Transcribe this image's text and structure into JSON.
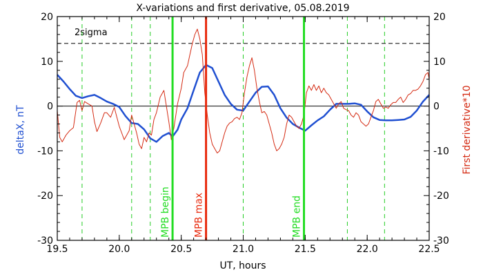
{
  "chart_data": {
    "type": "line",
    "title": "X-variations and first derivative, 05.08.2019",
    "xlabel": "UT, hours",
    "ylabel_left": "deltaX, nT",
    "ylabel_right": "First derivative*10",
    "xlim": [
      19.5,
      22.5
    ],
    "ylim": [
      -30,
      20
    ],
    "x_ticks": [
      "19.5",
      "20.0",
      "20.5",
      "21.0",
      "21.5",
      "22.0",
      "22.5"
    ],
    "x_tick_values": [
      19.5,
      20.0,
      20.5,
      21.0,
      21.5,
      22.0,
      22.5
    ],
    "y_ticks": [
      "20",
      "10",
      "0",
      "-10",
      "-20",
      "-30"
    ],
    "y_tick_values": [
      20,
      10,
      0,
      -10,
      -20,
      -30
    ],
    "grid": false,
    "threshold": {
      "label": "2sigma",
      "value": 14,
      "style": "dashed",
      "color": "#000000"
    },
    "zero_line": 0,
    "dashed_markers": {
      "color": "#22cc22",
      "x": [
        19.7,
        20.1,
        20.25,
        21.0,
        21.84,
        22.14
      ]
    },
    "event_markers": [
      {
        "label": "MPB begin",
        "x": 20.43,
        "color": "#22dd22"
      },
      {
        "label": "MPB max",
        "x": 20.7,
        "color": "#e8290c"
      },
      {
        "label": "MPB end",
        "x": 21.49,
        "color": "#22dd22"
      }
    ],
    "series": [
      {
        "name": "deltaX, nT",
        "color": "#1f4fd1",
        "points": [
          [
            19.5,
            7.0
          ],
          [
            19.55,
            5.5
          ],
          [
            19.6,
            3.8
          ],
          [
            19.65,
            2.3
          ],
          [
            19.7,
            1.8
          ],
          [
            19.75,
            2.2
          ],
          [
            19.8,
            2.5
          ],
          [
            19.85,
            1.8
          ],
          [
            19.9,
            1.0
          ],
          [
            19.95,
            0.5
          ],
          [
            20.0,
            -0.2
          ],
          [
            20.05,
            -2.2
          ],
          [
            20.1,
            -3.8
          ],
          [
            20.15,
            -4.0
          ],
          [
            20.2,
            -5.2
          ],
          [
            20.25,
            -7.2
          ],
          [
            20.3,
            -8.0
          ],
          [
            20.35,
            -6.7
          ],
          [
            20.4,
            -6.0
          ],
          [
            20.43,
            -6.8
          ],
          [
            20.47,
            -5.3
          ],
          [
            20.5,
            -3.0
          ],
          [
            20.55,
            -0.5
          ],
          [
            20.6,
            3.5
          ],
          [
            20.65,
            7.5
          ],
          [
            20.7,
            9.2
          ],
          [
            20.75,
            8.5
          ],
          [
            20.8,
            5.5
          ],
          [
            20.85,
            2.5
          ],
          [
            20.9,
            0.5
          ],
          [
            20.95,
            -0.8
          ],
          [
            21.0,
            -1.0
          ],
          [
            21.05,
            1.0
          ],
          [
            21.1,
            3.0
          ],
          [
            21.15,
            4.3
          ],
          [
            21.2,
            4.4
          ],
          [
            21.25,
            2.5
          ],
          [
            21.3,
            -0.5
          ],
          [
            21.35,
            -2.6
          ],
          [
            21.4,
            -4.0
          ],
          [
            21.45,
            -4.8
          ],
          [
            21.5,
            -5.5
          ],
          [
            21.55,
            -4.3
          ],
          [
            21.6,
            -3.2
          ],
          [
            21.65,
            -2.3
          ],
          [
            21.7,
            -0.8
          ],
          [
            21.75,
            0.5
          ],
          [
            21.8,
            0.5
          ],
          [
            21.85,
            0.5
          ],
          [
            21.9,
            0.6
          ],
          [
            21.95,
            0.3
          ],
          [
            22.0,
            -1.2
          ],
          [
            22.05,
            -2.5
          ],
          [
            22.1,
            -3.1
          ],
          [
            22.15,
            -3.2
          ],
          [
            22.2,
            -3.2
          ],
          [
            22.25,
            -3.1
          ],
          [
            22.3,
            -3.0
          ],
          [
            22.35,
            -2.4
          ],
          [
            22.4,
            -1.0
          ],
          [
            22.45,
            1.0
          ],
          [
            22.5,
            2.5
          ]
        ]
      },
      {
        "name": "First derivative*10",
        "color": "#d42a12",
        "points": [
          [
            19.5,
            -1.0
          ],
          [
            19.52,
            -7.0
          ],
          [
            19.54,
            -8.0
          ],
          [
            19.57,
            -6.5
          ],
          [
            19.6,
            -5.5
          ],
          [
            19.63,
            -4.8
          ],
          [
            19.66,
            0.8
          ],
          [
            19.68,
            1.3
          ],
          [
            19.7,
            -1.0
          ],
          [
            19.72,
            1.0
          ],
          [
            19.75,
            0.5
          ],
          [
            19.78,
            0.0
          ],
          [
            19.8,
            -3.5
          ],
          [
            19.82,
            -5.7
          ],
          [
            19.85,
            -3.8
          ],
          [
            19.88,
            -1.5
          ],
          [
            19.9,
            -1.5
          ],
          [
            19.93,
            -2.5
          ],
          [
            19.96,
            -0.3
          ],
          [
            20.0,
            -4.5
          ],
          [
            20.02,
            -6.0
          ],
          [
            20.04,
            -7.5
          ],
          [
            20.06,
            -6.5
          ],
          [
            20.08,
            -5.5
          ],
          [
            20.1,
            -2.0
          ],
          [
            20.12,
            -4.0
          ],
          [
            20.14,
            -6.0
          ],
          [
            20.16,
            -8.5
          ],
          [
            20.18,
            -9.5
          ],
          [
            20.2,
            -7.0
          ],
          [
            20.22,
            -8.0
          ],
          [
            20.24,
            -6.0
          ],
          [
            20.26,
            -6.5
          ],
          [
            20.28,
            -3.0
          ],
          [
            20.3,
            -1.5
          ],
          [
            20.33,
            2.0
          ],
          [
            20.36,
            3.5
          ],
          [
            20.38,
            0.0
          ],
          [
            20.4,
            -3.5
          ],
          [
            20.42,
            -7.5
          ],
          [
            20.44,
            -5.0
          ],
          [
            20.47,
            0.5
          ],
          [
            20.5,
            4.0
          ],
          [
            20.52,
            7.5
          ],
          [
            20.55,
            9.0
          ],
          [
            20.57,
            11.5
          ],
          [
            20.59,
            14.0
          ],
          [
            20.61,
            16.0
          ],
          [
            20.63,
            17.2
          ],
          [
            20.65,
            15.0
          ],
          [
            20.67,
            11.5
          ],
          [
            20.69,
            3.0
          ],
          [
            20.71,
            -2.0
          ],
          [
            20.73,
            -6.0
          ],
          [
            20.75,
            -8.5
          ],
          [
            20.77,
            -9.5
          ],
          [
            20.79,
            -10.5
          ],
          [
            20.81,
            -10.0
          ],
          [
            20.83,
            -8.0
          ],
          [
            20.85,
            -6.0
          ],
          [
            20.87,
            -4.5
          ],
          [
            20.89,
            -3.8
          ],
          [
            20.91,
            -3.5
          ],
          [
            20.93,
            -2.8
          ],
          [
            20.95,
            -2.5
          ],
          [
            20.97,
            -3.0
          ],
          [
            20.99,
            -1.5
          ],
          [
            21.01,
            3.0
          ],
          [
            21.03,
            6.5
          ],
          [
            21.05,
            9.0
          ],
          [
            21.07,
            10.8
          ],
          [
            21.09,
            8.0
          ],
          [
            21.11,
            4.0
          ],
          [
            21.13,
            1.0
          ],
          [
            21.15,
            -1.5
          ],
          [
            21.17,
            -1.2
          ],
          [
            21.19,
            -2.0
          ],
          [
            21.21,
            -4.0
          ],
          [
            21.23,
            -6.0
          ],
          [
            21.25,
            -8.5
          ],
          [
            21.27,
            -10.0
          ],
          [
            21.29,
            -9.5
          ],
          [
            21.31,
            -8.5
          ],
          [
            21.33,
            -7.0
          ],
          [
            21.35,
            -4.0
          ],
          [
            21.37,
            -2.0
          ],
          [
            21.39,
            -2.5
          ],
          [
            21.41,
            -3.5
          ],
          [
            21.43,
            -4.5
          ],
          [
            21.45,
            -5.0
          ],
          [
            21.47,
            -4.0
          ],
          [
            21.49,
            -2.0
          ],
          [
            21.51,
            3.0
          ],
          [
            21.53,
            4.5
          ],
          [
            21.55,
            3.5
          ],
          [
            21.57,
            4.8
          ],
          [
            21.59,
            3.5
          ],
          [
            21.61,
            4.5
          ],
          [
            21.63,
            3.0
          ],
          [
            21.65,
            4.0
          ],
          [
            21.67,
            3.0
          ],
          [
            21.69,
            2.5
          ],
          [
            21.71,
            1.5
          ],
          [
            21.73,
            0.5
          ],
          [
            21.75,
            -0.5
          ],
          [
            21.77,
            0.5
          ],
          [
            21.79,
            1.0
          ],
          [
            21.81,
            -0.5
          ],
          [
            21.83,
            -0.8
          ],
          [
            21.85,
            -1.0
          ],
          [
            21.87,
            -2.0
          ],
          [
            21.89,
            -2.5
          ],
          [
            21.91,
            -1.5
          ],
          [
            21.93,
            -2.0
          ],
          [
            21.95,
            -3.5
          ],
          [
            21.97,
            -4.0
          ],
          [
            21.99,
            -4.5
          ],
          [
            22.01,
            -4.0
          ],
          [
            22.03,
            -2.5
          ],
          [
            22.05,
            -1.0
          ],
          [
            22.07,
            1.0
          ],
          [
            22.09,
            1.5
          ],
          [
            22.11,
            0.5
          ],
          [
            22.13,
            -0.5
          ],
          [
            22.15,
            -0.2
          ],
          [
            22.17,
            -0.5
          ],
          [
            22.19,
            0.3
          ],
          [
            22.21,
            0.8
          ],
          [
            22.23,
            0.8
          ],
          [
            22.25,
            1.5
          ],
          [
            22.27,
            2.0
          ],
          [
            22.29,
            0.8
          ],
          [
            22.31,
            1.5
          ],
          [
            22.33,
            2.5
          ],
          [
            22.35,
            2.8
          ],
          [
            22.37,
            3.5
          ],
          [
            22.39,
            3.5
          ],
          [
            22.41,
            3.8
          ],
          [
            22.43,
            4.5
          ],
          [
            22.45,
            5.5
          ],
          [
            22.47,
            7.0
          ],
          [
            22.49,
            7.5
          ],
          [
            22.5,
            6.0
          ]
        ]
      }
    ]
  }
}
